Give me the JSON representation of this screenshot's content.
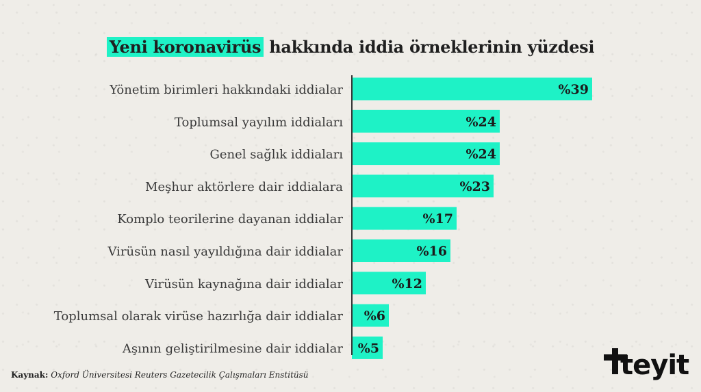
{
  "title": {
    "highlight": "Yeni koronavirüs",
    "rest": "hakkında iddia örneklerinin yüzdesi"
  },
  "source": {
    "label": "Kaynak:",
    "text": "Oxford Üniversitesi Reuters Gazetecilik Çalışmaları Enstitüsü"
  },
  "logo": {
    "text": "teyit"
  },
  "colors": {
    "bar": "#1ef2c6",
    "axis": "#333333",
    "background": "#efede8"
  },
  "chart_data": {
    "type": "bar",
    "orientation": "horizontal",
    "categories": [
      "Yönetim birimleri hakkındaki iddialar",
      "Toplumsal yayılım iddiaları",
      "Genel sağlık iddiaları",
      "Meşhur aktörlere dair iddialara",
      "Komplo teorilerine dayanan iddialar",
      "Virüsün nasıl yayıldığına dair iddialar",
      "Virüsün kaynağına dair iddialar",
      "Toplumsal olarak virüse hazırlığa dair iddialar",
      "Aşının geliştirilmesine dair iddialar"
    ],
    "values": [
      39,
      24,
      24,
      23,
      17,
      16,
      12,
      6,
      5
    ],
    "labels": [
      "%39",
      "%24",
      "%24",
      "%23",
      "%17",
      "%16",
      "%12",
      "%6",
      "%5"
    ],
    "xlim": [
      0,
      39
    ],
    "grid": false
  }
}
